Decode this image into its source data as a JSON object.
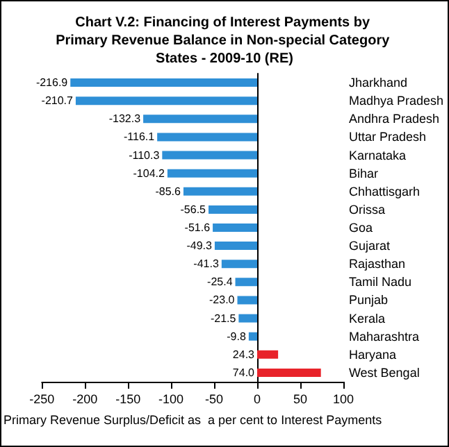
{
  "chart_data": {
    "type": "bar",
    "orientation": "horizontal",
    "title": "Chart V.2: Financing of Interest Payments by Primary Revenue Balance in Non-special Category States - 2009-10 (RE)",
    "xlabel": "Primary Revenue Surplus/Deficit as  a per cent to Interest Payments",
    "categories": [
      "Jharkhand",
      "Madhya Pradesh",
      "Andhra Pradesh",
      "Uttar Pradesh",
      "Karnataka",
      "Bihar",
      "Chhattisgarh",
      "Orissa",
      "Goa",
      "Gujarat",
      "Rajasthan",
      "Tamil Nadu",
      "Punjab",
      "Kerala",
      "Maharashtra",
      "Haryana",
      "West Bengal"
    ],
    "values": [
      -216.9,
      -210.7,
      -132.3,
      -116.1,
      -110.3,
      -104.2,
      -85.6,
      -56.5,
      -51.6,
      -49.3,
      -41.3,
      -25.4,
      -23.0,
      -21.5,
      -9.8,
      24.3,
      74.0
    ],
    "value_labels": [
      "-216.9",
      "-210.7",
      "-132.3",
      "-116.1",
      "-110.3",
      "-104.2",
      "-85.6",
      "-56.5",
      "-51.6",
      "-49.3",
      "-41.3",
      "-25.4",
      "-23.0",
      "-21.5",
      "-9.8",
      "24.3",
      "74.0"
    ],
    "colors": [
      "#2e8fd6",
      "#2e8fd6",
      "#2e8fd6",
      "#2e8fd6",
      "#2e8fd6",
      "#2e8fd6",
      "#2e8fd6",
      "#2e8fd6",
      "#2e8fd6",
      "#2e8fd6",
      "#2e8fd6",
      "#2e8fd6",
      "#2e8fd6",
      "#2e8fd6",
      "#2e8fd6",
      "#e8232a",
      "#e8232a"
    ],
    "xlim": [
      -250,
      100
    ],
    "xticks": [
      -250,
      -200,
      -150,
      -100,
      -50,
      0,
      50,
      100
    ]
  }
}
